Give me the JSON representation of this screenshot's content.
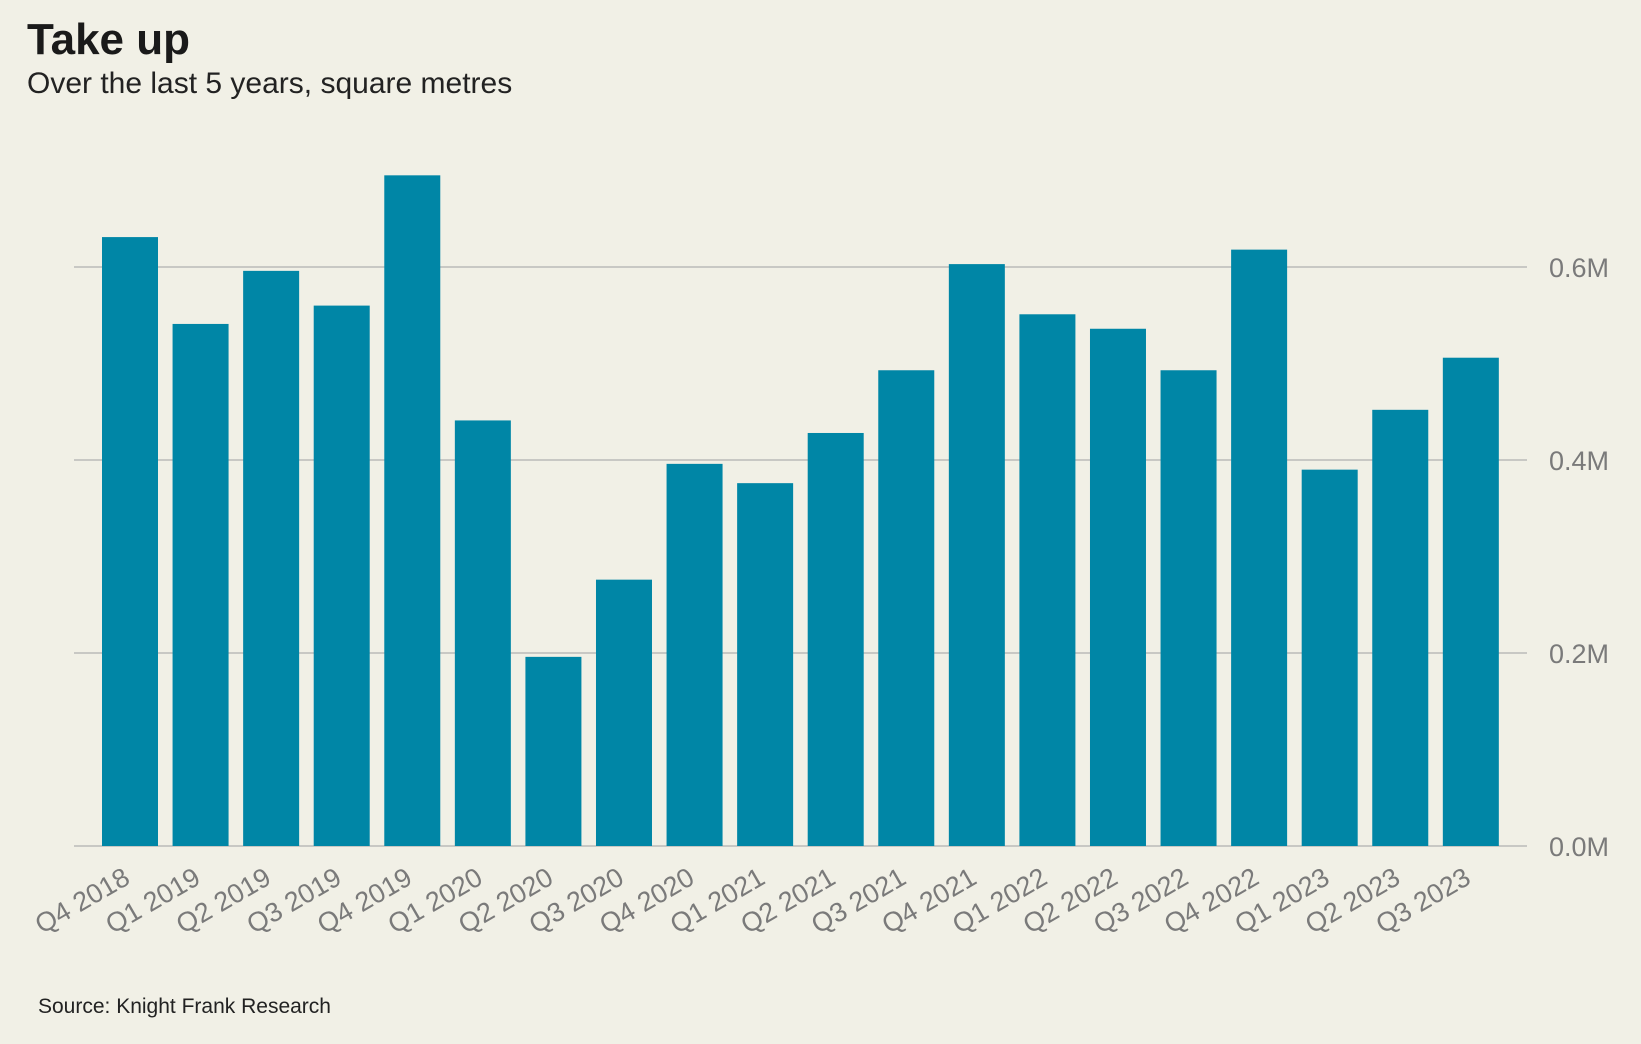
{
  "chart_data": {
    "type": "bar",
    "title": "Take up",
    "subtitle": "Over the last 5 years, square metres",
    "source": "Source: Knight Frank Research",
    "xlabel": "",
    "ylabel": "",
    "categories": [
      "Q4 2018",
      "Q1 2019",
      "Q2 2019",
      "Q3 2019",
      "Q4 2019",
      "Q1 2020",
      "Q2 2020",
      "Q3 2020",
      "Q4 2020",
      "Q1 2021",
      "Q2 2021",
      "Q3 2021",
      "Q4 2021",
      "Q1 2022",
      "Q2 2022",
      "Q3 2022",
      "Q4 2022",
      "Q1 2023",
      "Q2 2023",
      "Q3 2023"
    ],
    "values": [
      631000,
      541000,
      596000,
      560000,
      695000,
      441000,
      196000,
      276000,
      396000,
      376000,
      428000,
      493000,
      603000,
      551000,
      536000,
      493000,
      618000,
      390000,
      452000,
      506000
    ],
    "ylim": [
      0,
      700000
    ],
    "yticks": [
      0,
      200000,
      400000,
      600000
    ],
    "ytick_labels": [
      "0.0M",
      "0.2M",
      "0.4M",
      "0.6M"
    ],
    "yaxis_position": "right",
    "grid": true,
    "bar_color": "#0086a6",
    "grid_color": "#c8c8c4"
  }
}
